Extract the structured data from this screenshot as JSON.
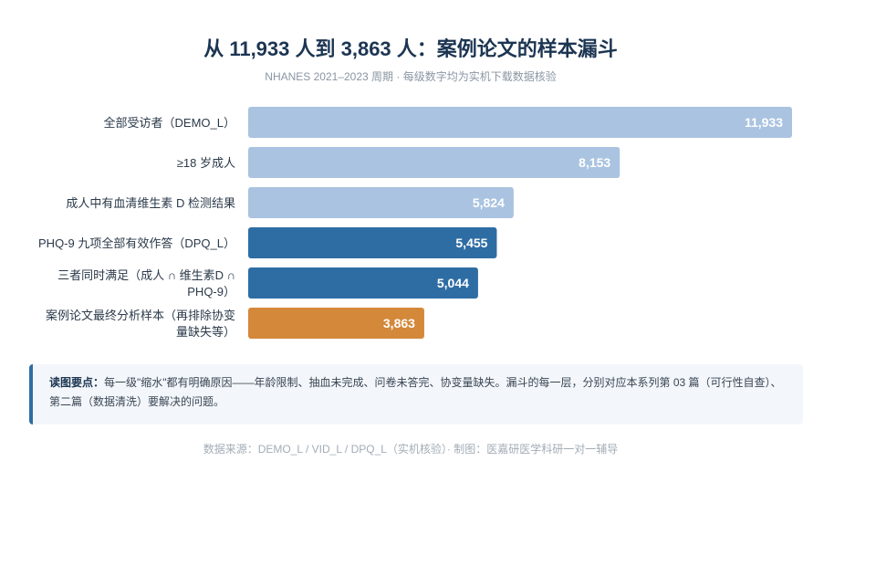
{
  "header": {
    "title": "从 11,933 人到 3,863 人：案例论文的样本漏斗",
    "subtitle": "NHANES 2021–2023 周期 · 每级数字均为实机下载数据核验"
  },
  "chart_data": {
    "type": "bar",
    "orientation": "horizontal",
    "categories": [
      [
        "全部受访者（DEMO_L）"
      ],
      [
        "≥18 岁成人"
      ],
      [
        "成人中有血清维生素 D 检测结果"
      ],
      [
        "PHQ-9 九项全部有效作答（DPQ_L）"
      ],
      [
        "三者同时满足（成人 ∩ 维生素D ∩",
        "PHQ-9）"
      ],
      [
        "案例论文最终分析样本（再排除协变",
        "量缺失等）"
      ]
    ],
    "values": [
      11933,
      8153,
      5824,
      5455,
      5044,
      3863
    ],
    "value_labels": [
      "11,933",
      "8,153",
      "5,824",
      "5,455",
      "5,044",
      "3,863"
    ],
    "colors": [
      "#a9c3e0",
      "#a9c3e0",
      "#a9c3e0",
      "#2e6da4",
      "#2e6da4",
      "#d4883a"
    ],
    "xlim": [
      0,
      11933
    ],
    "grid": false,
    "legend": "none"
  },
  "callout": {
    "label": "读图要点：",
    "text": "每一级\"缩水\"都有明确原因——年龄限制、抽血未完成、问卷未答完、协变量缺失。漏斗的每一层，分别对应本系列第 03 篇（可行性自查）、第二篇（数据清洗）要解决的问题。"
  },
  "footer": {
    "source": "数据来源：DEMO_L / VID_L / DPQ_L（实机核验）· 制图：医嘉研医学科研一对一辅导"
  }
}
